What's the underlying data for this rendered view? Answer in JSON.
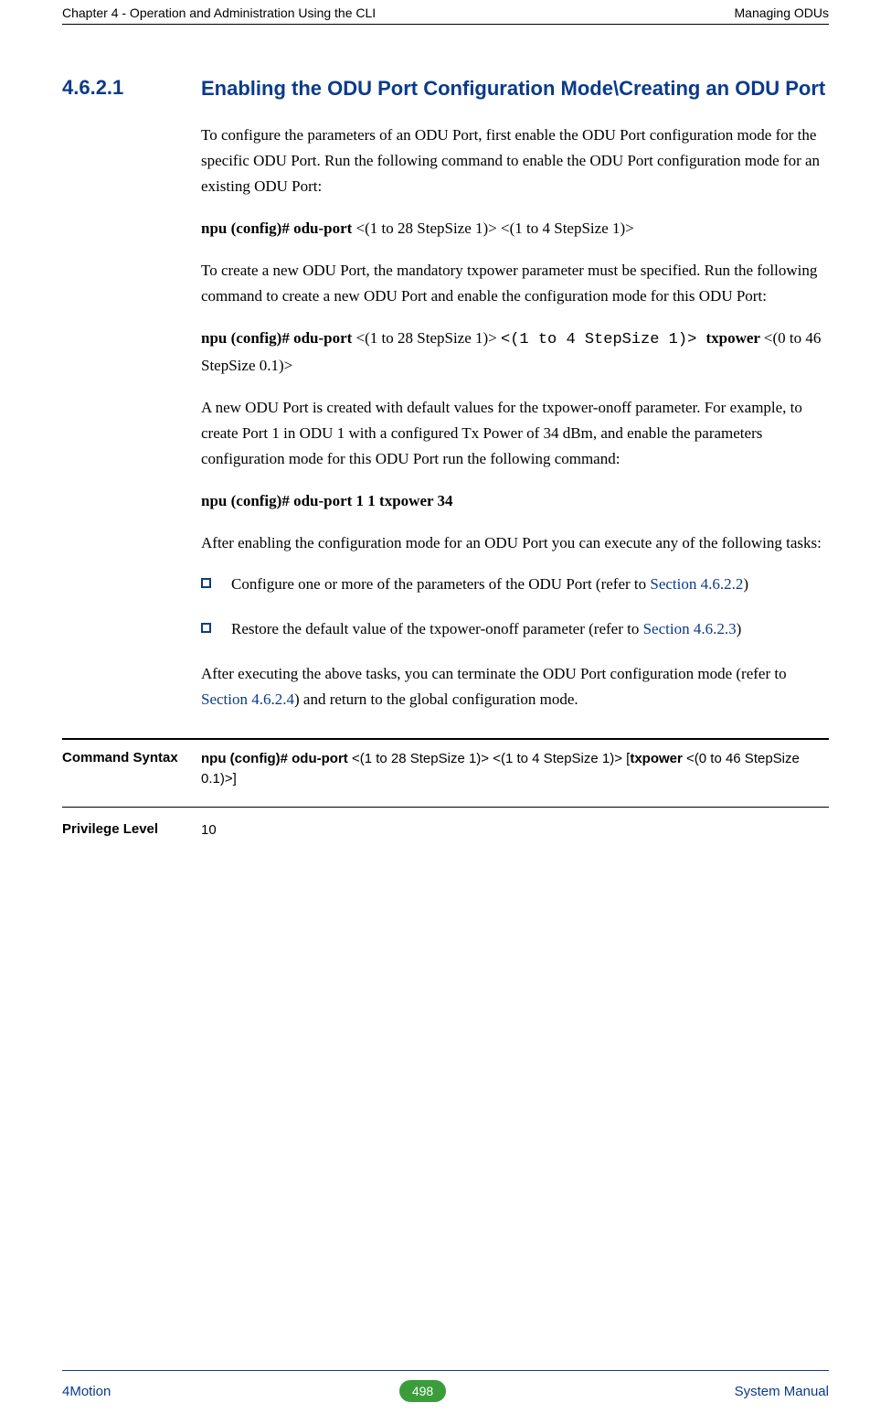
{
  "header": {
    "left": "Chapter 4 - Operation and Administration Using the CLI",
    "right": "Managing ODUs"
  },
  "section": {
    "number": "4.6.2.1",
    "title": "Enabling the ODU Port Configuration Mode\\Creating an ODU Port"
  },
  "paragraphs": {
    "p1": "To configure the parameters of an ODU Port, first enable the ODU Port configuration mode for the specific ODU Port. Run the following command to enable the ODU Port configuration mode for an existing ODU Port:",
    "cmd1_a": "npu (config)# odu-port ",
    "cmd1_b": "<(1 to 28 StepSize 1)> <(1 to 4 StepSize 1)>",
    "p2": "To create a new ODU Port, the mandatory txpower parameter must be specified. Run the following command to create a new ODU Port and enable the configuration mode for this ODU Port:",
    "cmd2_a": "npu (config)# odu-port ",
    "cmd2_b": "<(1 to 28 StepSize 1)> ",
    "cmd2_c": "<(1 to 4 StepSize 1)> ",
    "cmd2_d": "txpower ",
    "cmd2_e": "<(0 to 46 StepSize 0.1)>",
    "p3": "A new ODU Port is created with default values for the txpower-onoff parameter. For example, to create Port 1 in ODU 1 with a configured Tx Power of 34 dBm, and enable the parameters configuration mode for this ODU Port run the following command:",
    "cmd3": "npu (config)# odu-port 1 1 txpower 34",
    "p4": "After enabling the configuration mode for an ODU Port you can execute any of the following tasks:",
    "b1_a": "Configure one or more of the parameters of the ODU Port (refer to ",
    "b1_link": "Section 4.6.2.2",
    "b1_c": ")",
    "b2_a": "Restore the default value of the txpower-onoff parameter (refer to ",
    "b2_link": "Section 4.6.2.3",
    "b2_c": ")",
    "p5_a": "After executing the above tasks, you can terminate the ODU Port configuration mode (refer to ",
    "p5_link": "Section 4.6.2.4",
    "p5_c": ") and return to the global configuration mode."
  },
  "table": {
    "row1_label": "Command Syntax",
    "row1_a": "npu (config)# odu-port ",
    "row1_b": "<(1 to 28 StepSize 1)> <(1 to 4 StepSize 1)> [",
    "row1_c": "txpower ",
    "row1_d": " <(0 to 46 StepSize 0.1)>]",
    "row2_label": "Privilege Level",
    "row2_value": "10"
  },
  "footer": {
    "left": "4Motion",
    "page": "498",
    "right": "System Manual"
  }
}
